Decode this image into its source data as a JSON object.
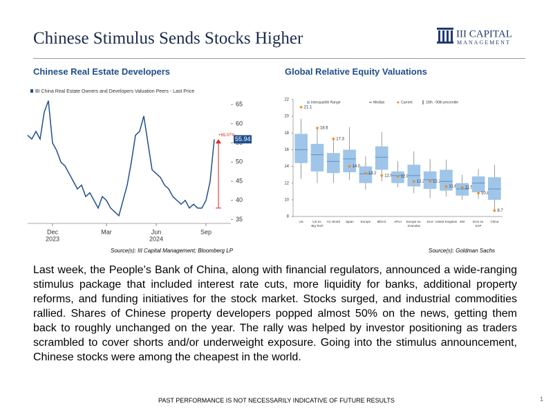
{
  "header": {
    "title": "Chinese Stimulus Sends Stocks Higher",
    "logo_line1": "III CAPITAL",
    "logo_line2": "MANAGEMENT"
  },
  "chart_data": [
    {
      "type": "line",
      "title": "Chinese Real Estate Developers",
      "legend": "BI China Real Estate Owners and Developers Valuation Peers - Last Price",
      "color": "#1f4e8c",
      "categories": [
        null,
        null,
        null,
        null,
        null,
        null,
        "Dec",
        null,
        null,
        null,
        null,
        null,
        null,
        null,
        null,
        null,
        null,
        null,
        null,
        "Mar",
        null,
        null,
        null,
        null,
        null,
        null,
        null,
        null,
        null,
        null,
        null,
        "Jun",
        null,
        null,
        null,
        null,
        null,
        null,
        null,
        null,
        null,
        null,
        null,
        "Sep",
        null,
        null
      ],
      "year_labels": [
        null,
        null,
        null,
        null,
        null,
        null,
        "2023",
        null,
        null,
        null,
        null,
        null,
        null,
        null,
        null,
        null,
        null,
        null,
        null,
        null,
        null,
        null,
        null,
        null,
        null,
        null,
        null,
        null,
        null,
        null,
        null,
        "2024",
        null,
        null,
        null,
        null,
        null,
        null,
        null,
        null,
        null,
        null,
        null,
        null,
        null,
        null
      ],
      "values": [
        57,
        56,
        58,
        56,
        63,
        66,
        55,
        53,
        50,
        49,
        47,
        45,
        43,
        44,
        41,
        42,
        40,
        38,
        41,
        40,
        38,
        37,
        36,
        40,
        44,
        50,
        57,
        58,
        62,
        55,
        48,
        47,
        46,
        44,
        43,
        41,
        40,
        39,
        40,
        38,
        39,
        38,
        38,
        40,
        45,
        55.94
      ],
      "annotation": "+65.07%",
      "ylim": [
        34,
        69
      ],
      "yticks": [
        35,
        40,
        45,
        50,
        55,
        60,
        65
      ],
      "source": "Source(s): III Capital Management; Bloomberg LP"
    },
    {
      "type": "box",
      "title": "Global Relative Equity Valuations",
      "legend": [
        "Interquartile Range",
        "Median",
        "Current",
        "10th - 90th percentile"
      ],
      "categories": [
        "US",
        "US ex. Big Tech",
        "AC World",
        "Japan",
        "Europe",
        "MDAX",
        "APxJ",
        "Europe ex. Granolas",
        "DAX",
        "United Kingdom",
        "EM",
        "DAX ex. SAP",
        "China"
      ],
      "p10": [
        12.5,
        12,
        12,
        12.4,
        11.2,
        12.2,
        11.5,
        10.8,
        10.2,
        10.4,
        10,
        10.1,
        8.6
      ],
      "q1": [
        14.4,
        13.4,
        13.2,
        13.3,
        12,
        13.6,
        12,
        11.6,
        11.3,
        11.1,
        10.5,
        10.9,
        10
      ],
      "median": [
        16,
        15.4,
        14.6,
        14.9,
        13.1,
        15.1,
        12.9,
        12.9,
        12.4,
        12.2,
        11.3,
        12,
        11.3
      ],
      "q3": [
        17.9,
        16.7,
        15.6,
        16,
        14,
        16.4,
        13.4,
        14.2,
        13.4,
        13.6,
        12,
        12.8,
        12.7
      ],
      "p90": [
        19.7,
        18.7,
        17.2,
        18.7,
        15.2,
        18.1,
        14.6,
        15.8,
        14.9,
        14.8,
        13,
        13.7,
        14.2
      ],
      "current": [
        21.1,
        18.6,
        17.3,
        14.0,
        13.2,
        12.9,
        12.8,
        12.2,
        12.2,
        11.6,
        11.5,
        10.8,
        8.7
      ],
      "current_labels": [
        "21.1",
        "18.6",
        "17.3",
        "14.0",
        "13.2",
        "12.9",
        "12.8",
        "12.2",
        "12.2",
        "11.6",
        "11.5",
        "10.8",
        "8.7"
      ],
      "ylim": [
        8,
        22
      ],
      "yticks": [
        8,
        10,
        12,
        14,
        16,
        18,
        20,
        22
      ],
      "source": "Source(s): Goldman Sachs"
    }
  ],
  "paragraph": "Last week, the People’s Bank of China, along with financial regulators, announced a wide-ranging stimulus package that included interest rate cuts, more liquidity for banks, additional property reforms, and funding initiatives for the stock market. Stocks surged, and industrial commodities rallied. Shares of Chinese property developers popped almost 50% on the news, getting them back to roughly unchanged on the year. The rally was helped by investor positioning as traders scrambled to cover shorts and/or underweight exposure. Going into the stimulus announcement, Chinese stocks were among the cheapest in the world.",
  "footer": {
    "disclaimer": "PAST PERFORMANCE IS NOT NECESSARILY INDICATIVE OF FUTURE RESULTS",
    "page": "1"
  }
}
